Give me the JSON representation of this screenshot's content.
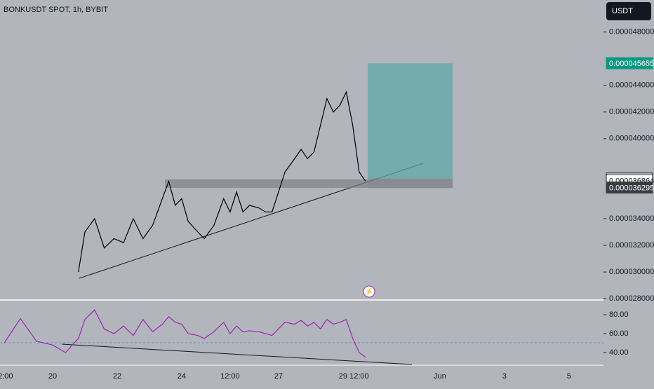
{
  "header": {
    "symbol": "BONKUSDT SPOT, 1h, BYBIT",
    "currency_button": "USDT"
  },
  "chart_data": [
    {
      "type": "line",
      "x": [
        20.8,
        21.0,
        21.3,
        21.6,
        21.9,
        22.2,
        22.5,
        22.8,
        23.1,
        23.4,
        23.6,
        23.8,
        24.0,
        24.2,
        24.5,
        24.7,
        25.0,
        25.3,
        25.5,
        25.7,
        25.9,
        26.1,
        26.4,
        26.6,
        26.8,
        27.0,
        27.2,
        27.5,
        27.7,
        27.9,
        28.1,
        28.3,
        28.5,
        28.7,
        28.9,
        29.1,
        29.3,
        29.5,
        29.7
      ],
      "series": [
        {
          "color": "#000000",
          "values": [
            3e-05,
            3.3e-05,
            3.4e-05,
            3.18e-05,
            3.25e-05,
            3.22e-05,
            3.4e-05,
            3.25e-05,
            3.35e-05,
            3.55e-05,
            3.68e-05,
            3.5e-05,
            3.55e-05,
            3.38e-05,
            3.3e-05,
            3.25e-05,
            3.35e-05,
            3.55e-05,
            3.45e-05,
            3.6e-05,
            3.45e-05,
            3.5e-05,
            3.48e-05,
            3.45e-05,
            3.45e-05,
            3.6e-05,
            3.75e-05,
            3.85e-05,
            3.92e-05,
            3.85e-05,
            3.9e-05,
            4.1e-05,
            4.3e-05,
            4.2e-05,
            4.25e-05,
            4.35e-05,
            4.1e-05,
            3.75e-05,
            3.68e-05
          ]
        }
      ],
      "xlim": [
        18.37,
        37.07
      ],
      "ylim": [
        2.79e-05,
        5.04e-05
      ],
      "xticks": [
        {
          "value": 18.54,
          "label": "2:00"
        },
        20,
        22,
        24,
        {
          "value": 25.5,
          "label": "12:00"
        },
        27,
        29,
        {
          "value": 29.5,
          "label": "12:00"
        },
        {
          "value": 32,
          "label": "Jun"
        },
        {
          "value": 34,
          "label": "3"
        },
        {
          "value": 36,
          "label": "5"
        }
      ],
      "yticks": [
        {
          "value": 4.8e-05,
          "label": "0.0000480000"
        },
        {
          "value": 4.4e-05,
          "label": "0.0000440000"
        },
        {
          "value": 4.2e-05,
          "label": "0.0000420000"
        },
        {
          "value": 4e-05,
          "label": "0.0000400000"
        },
        {
          "value": 3.4e-05,
          "label": "0.0000340000"
        },
        {
          "value": 3.2e-05,
          "label": "0.0000320000"
        },
        {
          "value": 3e-05,
          "label": "0.0000300000"
        },
        {
          "value": 2.8e-05,
          "label": "0.0000280000"
        }
      ],
      "position": {
        "target": 4.56553e-05,
        "entry": 3.70015e-05,
        "stop": 3.62954e-05
      },
      "last_price": 3.68649e-05
    },
    {
      "type": "line",
      "x": [
        18.5,
        19.0,
        19.5,
        20.0,
        20.4,
        20.8,
        21.0,
        21.3,
        21.6,
        21.9,
        22.2,
        22.5,
        22.8,
        23.1,
        23.4,
        23.6,
        23.8,
        24.0,
        24.2,
        24.5,
        24.7,
        25.0,
        25.3,
        25.5,
        25.7,
        25.9,
        26.1,
        26.4,
        26.6,
        26.8,
        27.0,
        27.2,
        27.5,
        27.7,
        27.9,
        28.1,
        28.3,
        28.5,
        28.7,
        28.9,
        29.1,
        29.3,
        29.5,
        29.7
      ],
      "series": [
        {
          "color": "#9c27b0",
          "values": [
            50,
            76,
            52,
            48,
            40,
            55,
            75,
            85,
            65,
            60,
            68,
            58,
            75,
            62,
            70,
            78,
            72,
            70,
            60,
            58,
            55,
            62,
            72,
            60,
            68,
            62,
            63,
            62,
            60,
            58,
            65,
            72,
            70,
            74,
            68,
            72,
            65,
            75,
            70,
            72,
            75,
            55,
            40,
            35
          ]
        }
      ],
      "ylim": [
        27.4,
        94.1
      ],
      "yticks": [
        {
          "value": 80,
          "label": "80.00"
        },
        {
          "value": 60,
          "label": "60.00"
        },
        {
          "value": 40,
          "label": "40.00"
        }
      ]
    }
  ]
}
